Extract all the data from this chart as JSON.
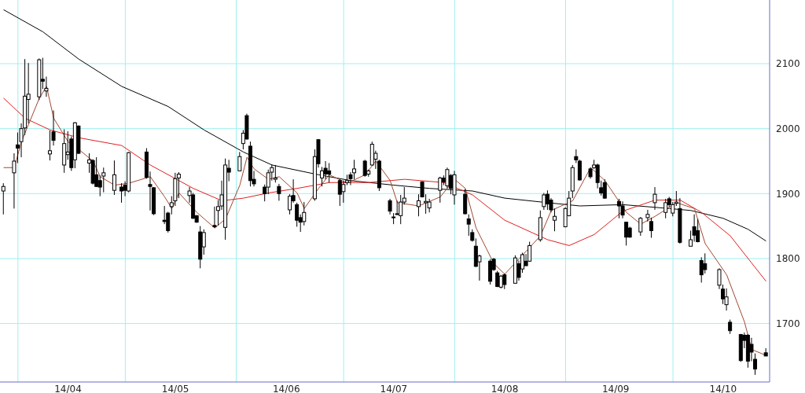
{
  "chart_data": {
    "type": "candlestick",
    "x": [
      "--03-28",
      "--03-31",
      "--04-01",
      "--04-02",
      "--04-03",
      "--04-04",
      "--04-07",
      "--04-08",
      "--04-09",
      "--04-10",
      "--04-11",
      "--04-14",
      "--04-15",
      "--04-16",
      "--04-17",
      "--04-18",
      "--04-21",
      "--04-22",
      "--04-23",
      "--04-24",
      "--04-25",
      "--04-28",
      "--04-30",
      "--05-01",
      "--05-02",
      "--05-07",
      "--05-08",
      "--05-09",
      "--05-12",
      "--05-13",
      "--05-14",
      "--05-15",
      "--05-16",
      "--05-19",
      "--05-20",
      "--05-21",
      "--05-22",
      "--05-23",
      "--05-26",
      "--05-27",
      "--05-28",
      "--05-29",
      "--05-30",
      "--06-02",
      "--06-03",
      "--06-04",
      "--06-05",
      "--06-06",
      "--06-09",
      "--06-10",
      "--06-11",
      "--06-12",
      "--06-13",
      "--06-16",
      "--06-17",
      "--06-18",
      "--06-19",
      "--06-20",
      "--06-23",
      "--06-24",
      "--06-25",
      "--06-26",
      "--06-27",
      "--06-30",
      "--07-01",
      "--07-02",
      "--07-03",
      "--07-04",
      "--07-07",
      "--07-08",
      "--07-09",
      "--07-10",
      "--07-11",
      "--07-14",
      "--07-15",
      "--07-16",
      "--07-17",
      "--07-18",
      "--07-22",
      "--07-23",
      "--07-24",
      "--07-25",
      "--07-28",
      "--07-29",
      "--07-30",
      "--07-31",
      "--08-01",
      "--08-04",
      "--08-05",
      "--08-06",
      "--08-07",
      "--08-08",
      "--08-11",
      "--08-12",
      "--08-13",
      "--08-14",
      "--08-15",
      "--08-18",
      "--08-19",
      "--08-20",
      "--08-21",
      "--08-22",
      "--08-25",
      "--08-26",
      "--08-27",
      "--08-28",
      "--08-29",
      "--09-01",
      "--09-02",
      "--09-03",
      "--09-04",
      "--09-05",
      "--09-08",
      "--09-09",
      "--09-10",
      "--09-11",
      "--09-12",
      "--09-16",
      "--09-17",
      "--09-18",
      "--09-19",
      "--09-22",
      "--09-24",
      "--09-25",
      "--09-26",
      "--09-29",
      "--09-30",
      "--10-01",
      "--10-02",
      "--10-03",
      "--10-06",
      "--10-07",
      "--10-08",
      "--10-09",
      "--10-10",
      "--10-14",
      "--10-15",
      "--10-16",
      "--10-17",
      "--10-20",
      "--10-21",
      "--10-22",
      "--10-23",
      "--10-24",
      "--10-27"
    ],
    "series": [
      {
        "color": "#000000",
        "ohlc": [
          [
            1904,
            1916,
            1868,
            1911
          ],
          [
            1932,
            1962,
            1877,
            1950
          ],
          [
            1975,
            1994,
            1947,
            1970
          ],
          [
            1980,
            2008,
            1956,
            2000
          ],
          [
            2001,
            2107,
            1990,
            2050
          ],
          [
            2045,
            2101,
            2008,
            2053
          ],
          [
            2049,
            2108,
            2044,
            2106
          ],
          [
            2076,
            2109,
            2061,
            2073
          ],
          [
            2058,
            2080,
            2049,
            2062
          ],
          [
            1961,
            1997,
            1951,
            1966
          ],
          [
            1995,
            2028,
            1974,
            1982
          ],
          [
            1944,
            1999,
            1932,
            1977
          ],
          [
            1960,
            1996,
            1952,
            1964
          ],
          [
            1984,
            1988,
            1935,
            1940
          ],
          [
            1952,
            2010,
            1939,
            2009
          ],
          [
            2004,
            2005,
            1961,
            1962
          ],
          [
            1947,
            1962,
            1932,
            1952
          ],
          [
            1951,
            1953,
            1914,
            1916
          ],
          [
            1929,
            1956,
            1910,
            1911
          ],
          [
            1920,
            1928,
            1896,
            1910
          ],
          [
            1927,
            1940,
            1902,
            1932
          ],
          [
            1905,
            1951,
            1898,
            1929
          ],
          [
            1910,
            1916,
            1886,
            1904
          ],
          [
            1913,
            1919,
            1896,
            1905
          ],
          [
            1904,
            1964,
            1902,
            1963
          ],
          [
            1964,
            1970,
            1923,
            1925
          ],
          [
            1914,
            1934,
            1874,
            1911
          ],
          [
            1909,
            1910,
            1867,
            1869
          ],
          [
            1859,
            1881,
            1853,
            1857
          ],
          [
            1870,
            1872,
            1840,
            1843
          ],
          [
            1880,
            1896,
            1868,
            1886
          ],
          [
            1889,
            1932,
            1881,
            1923
          ],
          [
            1924,
            1933,
            1893,
            1930
          ],
          [
            1897,
            1910,
            1886,
            1904
          ],
          [
            1898,
            1901,
            1861,
            1862
          ],
          [
            1866,
            1867,
            1855,
            1856
          ],
          [
            1841,
            1850,
            1785,
            1799
          ],
          [
            1818,
            1845,
            1806,
            1840
          ],
          [
            1851,
            1880,
            1847,
            1849
          ],
          [
            1874,
            1890,
            1851,
            1880
          ],
          [
            1881,
            1920,
            1875,
            1898
          ],
          [
            1848,
            1954,
            1829,
            1944
          ],
          [
            1939,
            1952,
            1919,
            1933
          ],
          [
            1935,
            1964,
            1935,
            1957
          ],
          [
            1977,
            1998,
            1968,
            1993
          ],
          [
            2020,
            2023,
            1983,
            1984
          ],
          [
            1973,
            1980,
            1911,
            1920
          ],
          [
            1922,
            1935,
            1911,
            1915
          ],
          [
            1910,
            1914,
            1888,
            1900
          ],
          [
            1910,
            1937,
            1899,
            1932
          ],
          [
            1933,
            1945,
            1920,
            1940
          ],
          [
            1922,
            1944,
            1917,
            1924
          ],
          [
            1911,
            1915,
            1889,
            1900
          ],
          [
            1875,
            1899,
            1868,
            1896
          ],
          [
            1897,
            1922,
            1886,
            1889
          ],
          [
            1883,
            1886,
            1849,
            1859
          ],
          [
            1863,
            1868,
            1841,
            1856
          ],
          [
            1857,
            1887,
            1851,
            1871
          ],
          [
            1892,
            1968,
            1889,
            1957
          ],
          [
            1983,
            1984,
            1940,
            1946
          ],
          [
            1924,
            1941,
            1911,
            1935
          ],
          [
            1939,
            1950,
            1922,
            1930
          ],
          [
            1935,
            1947,
            1917,
            1930
          ],
          [
            1920,
            1922,
            1881,
            1899
          ],
          [
            1903,
            1920,
            1886,
            1914
          ],
          [
            1917,
            1929,
            1913,
            1920
          ],
          [
            1929,
            1933,
            1913,
            1923
          ],
          [
            1932,
            1952,
            1922,
            1938
          ],
          [
            1950,
            1952,
            1926,
            1928
          ],
          [
            1930,
            1937,
            1926,
            1935
          ],
          [
            1944,
            1980,
            1943,
            1976
          ],
          [
            1953,
            1966,
            1938,
            1962
          ],
          [
            1950,
            1952,
            1904,
            1909
          ],
          [
            1889,
            1892,
            1868,
            1873
          ],
          [
            1864,
            1870,
            1853,
            1863
          ],
          [
            1869,
            1889,
            1867,
            1868
          ],
          [
            1866,
            1898,
            1853,
            1887
          ],
          [
            1887,
            1910,
            1883,
            1893
          ],
          [
            1880,
            1899,
            1865,
            1889
          ],
          [
            1918,
            1919,
            1894,
            1895
          ],
          [
            1886,
            1899,
            1869,
            1888
          ],
          [
            1878,
            1892,
            1871,
            1887
          ],
          [
            1905,
            1926,
            1886,
            1924
          ],
          [
            1924,
            1928,
            1913,
            1918
          ],
          [
            1912,
            1940,
            1908,
            1937
          ],
          [
            1928,
            1930,
            1899,
            1908
          ],
          [
            1898,
            1935,
            1883,
            1929
          ],
          [
            1899,
            1907,
            1868,
            1869
          ],
          [
            1861,
            1868,
            1835,
            1853
          ],
          [
            1840,
            1845,
            1826,
            1828
          ],
          [
            1819,
            1831,
            1787,
            1788
          ],
          [
            1795,
            1806,
            1766,
            1804
          ],
          [
            1796,
            1799,
            1760,
            1765
          ],
          [
            1799,
            1801,
            1781,
            1783
          ],
          [
            1778,
            1781,
            1756,
            1757
          ],
          [
            1756,
            1775,
            1754,
            1773
          ],
          [
            1775,
            1777,
            1753,
            1760
          ],
          [
            1762,
            1805,
            1762,
            1801
          ],
          [
            1792,
            1797,
            1766,
            1771
          ],
          [
            1784,
            1809,
            1778,
            1806
          ],
          [
            1796,
            1807,
            1789,
            1789
          ],
          [
            1796,
            1826,
            1795,
            1820
          ],
          [
            1829,
            1874,
            1826,
            1863
          ],
          [
            1880,
            1901,
            1875,
            1898
          ],
          [
            1899,
            1905,
            1875,
            1884
          ],
          [
            1890,
            1893,
            1871,
            1875
          ],
          [
            1859,
            1877,
            1842,
            1865
          ],
          [
            1849,
            1879,
            1848,
            1877
          ],
          [
            1866,
            1904,
            1865,
            1893
          ],
          [
            1904,
            1944,
            1893,
            1940
          ],
          [
            1957,
            1968,
            1947,
            1952
          ],
          [
            1950,
            1952,
            1920,
            1921
          ],
          [
            1938,
            1940,
            1923,
            1926
          ],
          [
            1940,
            1952,
            1938,
            1944
          ],
          [
            1944,
            1946,
            1908,
            1917
          ],
          [
            1909,
            1920,
            1897,
            1901
          ],
          [
            1917,
            1922,
            1892,
            1893
          ],
          [
            1888,
            1892,
            1862,
            1881
          ],
          [
            1881,
            1888,
            1862,
            1867
          ],
          [
            1856,
            1856,
            1820,
            1833
          ],
          [
            1847,
            1849,
            1832,
            1833
          ],
          [
            1841,
            1864,
            1835,
            1862
          ],
          [
            1863,
            1875,
            1857,
            1868
          ],
          [
            1857,
            1863,
            1832,
            1843
          ],
          [
            1886,
            1910,
            1875,
            1899
          ],
          [
            1871,
            1892,
            1862,
            1886
          ],
          [
            1892,
            1895,
            1879,
            1883
          ],
          [
            1870,
            1887,
            1865,
            1883
          ],
          [
            1885,
            1904,
            1881,
            1887
          ],
          [
            1877,
            1893,
            1823,
            1825
          ],
          [
            1819,
            1843,
            1819,
            1829
          ],
          [
            1849,
            1868,
            1826,
            1836
          ],
          [
            1843,
            1861,
            1825,
            1826
          ],
          [
            1797,
            1802,
            1763,
            1775
          ],
          [
            1792,
            1808,
            1777,
            1783
          ],
          [
            1759,
            1785,
            1753,
            1783
          ],
          [
            1753,
            1760,
            1730,
            1738
          ],
          [
            1729,
            1754,
            1720,
            1741
          ],
          [
            1702,
            1706,
            1684,
            1689
          ],
          [
            1683,
            1684,
            1641,
            1643
          ],
          [
            1682,
            1686,
            1662,
            1674
          ],
          [
            1682,
            1684,
            1632,
            1642
          ],
          [
            1668,
            1678,
            1642,
            1656
          ],
          [
            1645,
            1654,
            1621,
            1630
          ],
          [
            1655,
            1662,
            1650,
            1650
          ]
        ]
      },
      {
        "type": "line",
        "color": "#000000",
        "x": [
          "--03-28",
          "--04-08",
          "--04-18",
          "--04-30",
          "--05-13",
          "--05-23",
          "--06-03",
          "--06-11",
          "--06-24",
          "--07-03",
          "--07-15",
          "--07-25",
          "--08-06",
          "--08-15",
          "--08-27",
          "--09-05",
          "--09-17",
          "--09-30",
          "--10-06",
          "--10-15",
          "--10-22",
          "--10-27"
        ],
        "values": [
          2183,
          2149,
          2107,
          2065,
          2034,
          1998,
          1964,
          1944,
          1929,
          1920,
          1913,
          1908,
          1904,
          1893,
          1886,
          1881,
          1883,
          1877,
          1874,
          1862,
          1845,
          1827
        ]
      },
      {
        "type": "line",
        "color": "#e02020",
        "x": [
          "--03-28",
          "--04-03",
          "--04-10",
          "--04-18",
          "--04-30",
          "--05-08",
          "--05-20",
          "--05-28",
          "--06-03",
          "--06-10",
          "--06-18",
          "--06-27",
          "--07-08",
          "--07-18",
          "--07-29",
          "--08-06",
          "--08-15",
          "--08-27",
          "--09-02",
          "--09-09",
          "--09-17",
          "--09-26",
          "--10-03",
          "--10-09",
          "--10-17",
          "--10-23",
          "--10-27"
        ],
        "values": [
          2047,
          2016,
          1998,
          1986,
          1974,
          1944,
          1908,
          1889,
          1893,
          1901,
          1908,
          1917,
          1917,
          1922,
          1917,
          1898,
          1859,
          1829,
          1820,
          1837,
          1873,
          1890,
          1890,
          1871,
          1835,
          1793,
          1765
        ]
      },
      {
        "type": "line",
        "color": "#a04830",
        "x": [
          "--03-28",
          "--03-31",
          "--04-02",
          "--04-07",
          "--04-09",
          "--04-11",
          "--04-15",
          "--04-18",
          "--04-22",
          "--04-24",
          "--04-28",
          "--05-02",
          "--05-08",
          "--05-12",
          "--05-14",
          "--05-16",
          "--05-21",
          "--05-26",
          "--05-29",
          "--06-02",
          "--06-04",
          "--06-06",
          "--06-10",
          "--06-13",
          "--06-18",
          "--06-20",
          "--06-24",
          "--06-27",
          "--07-02",
          "--07-07",
          "--07-10",
          "--07-14",
          "--07-16",
          "--07-22",
          "--07-28",
          "--08-01",
          "--08-04",
          "--08-07",
          "--08-12",
          "--08-15",
          "--08-25",
          "--08-28",
          "--09-03",
          "--09-08",
          "--09-12",
          "--09-18",
          "--09-22",
          "--09-26",
          "--10-02",
          "--10-07",
          "--10-10",
          "--10-16",
          "--10-21",
          "--10-23",
          "--10-27"
        ],
        "values": [
          1940,
          1940,
          1980,
          2047,
          2065,
          2016,
          1980,
          1968,
          1950,
          1926,
          1913,
          1916,
          1926,
          1895,
          1877,
          1901,
          1871,
          1847,
          1861,
          1913,
          1956,
          1938,
          1922,
          1926,
          1901,
          1877,
          1908,
          1929,
          1916,
          1929,
          1950,
          1920,
          1886,
          1881,
          1895,
          1922,
          1908,
          1847,
          1792,
          1776,
          1835,
          1874,
          1889,
          1940,
          1920,
          1871,
          1853,
          1865,
          1886,
          1877,
          1823,
          1775,
          1702,
          1660,
          1651
        ]
      }
    ],
    "xlim": [
      "--03-27",
      "--10-28"
    ],
    "xticks": [
      {
        "value": "--04-01",
        "label": null
      },
      {
        "value": "--04-15",
        "label": "14/04"
      },
      {
        "value": "--05-01",
        "label": null
      },
      {
        "value": "--05-15",
        "label": "14/05"
      },
      {
        "value": "--06-01",
        "label": null
      },
      {
        "value": "--06-15",
        "label": "14/06"
      },
      {
        "value": "--07-01",
        "label": null
      },
      {
        "value": "--07-15",
        "label": "14/07"
      },
      {
        "value": "--08-01",
        "label": null
      },
      {
        "value": "--08-15",
        "label": "14/08"
      },
      {
        "value": "--09-01",
        "label": null
      },
      {
        "value": "--09-15",
        "label": "14/09"
      },
      {
        "value": "--10-01",
        "label": null
      },
      {
        "value": "--10-15",
        "label": "14/10"
      }
    ],
    "ylim": [
      1610,
      2198
    ],
    "yticks": [
      1700,
      1800,
      1900,
      2000,
      2100
    ],
    "grid": true
  }
}
